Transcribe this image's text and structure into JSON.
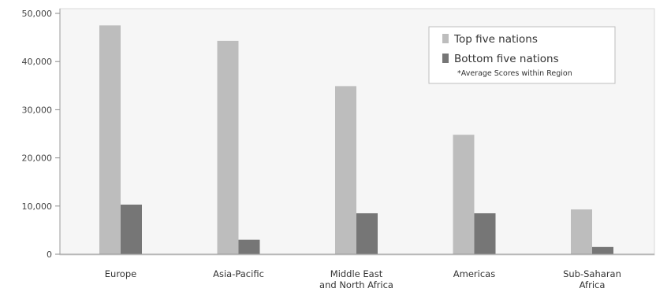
{
  "chart_data": {
    "type": "bar",
    "title": "",
    "xlabel": "",
    "ylabel": "",
    "ylim": [
      0,
      50000
    ],
    "yticks": [
      0,
      10000,
      20000,
      30000,
      40000,
      50000
    ],
    "ytick_labels": [
      "0",
      "10,000",
      "20,000",
      "30,000",
      "40,000",
      "50,000"
    ],
    "categories": [
      [
        "Europe"
      ],
      [
        "Asia-Pacific"
      ],
      [
        "Middle East",
        "and North Africa"
      ],
      [
        "Americas"
      ],
      [
        "Sub-Saharan",
        "Africa"
      ]
    ],
    "series": [
      {
        "name": "Top five nations",
        "color": "#bdbdbd",
        "values": [
          47500,
          44300,
          34900,
          24800,
          9300
        ]
      },
      {
        "name": "Bottom five nations",
        "color": "#767676",
        "values": [
          10300,
          3000,
          8500,
          8500,
          1500
        ]
      }
    ],
    "legend": {
      "position": "top-right",
      "note": "*Average Scores within Region"
    },
    "grid": false,
    "background": "#f6f6f6"
  }
}
